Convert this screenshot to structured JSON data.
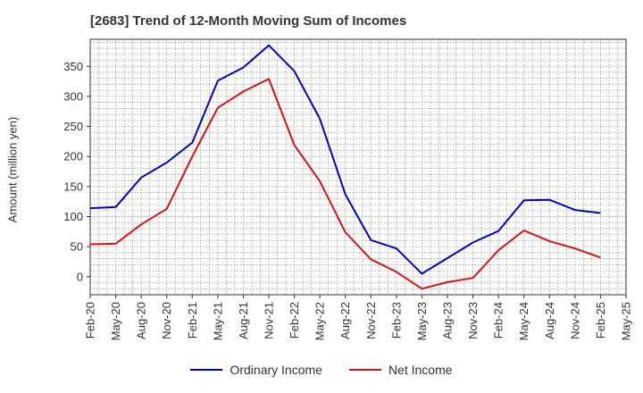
{
  "chart_data": {
    "type": "line",
    "title": "[2683]  Trend of 12-Month Moving Sum of Incomes",
    "ylabel": "Amount (million yen)",
    "xlabel": "",
    "ylim": [
      -30,
      395
    ],
    "yticks": [
      0,
      50,
      100,
      150,
      200,
      250,
      300,
      350
    ],
    "grid": true,
    "legend_position": "bottom",
    "categories": [
      "Feb-20",
      "May-20",
      "Aug-20",
      "Nov-20",
      "Feb-21",
      "May-21",
      "Aug-21",
      "Nov-21",
      "Feb-22",
      "May-22",
      "Aug-22",
      "Nov-22",
      "Feb-23",
      "May-23",
      "Aug-23",
      "Nov-23",
      "Feb-24",
      "May-24",
      "Aug-24",
      "Nov-24",
      "Feb-25",
      "May-25"
    ],
    "series": [
      {
        "name": "Ordinary Income",
        "color": "#0000cc",
        "values": [
          114,
          116,
          165,
          190,
          223,
          326,
          348,
          385,
          342,
          263,
          137,
          61,
          47,
          5,
          31,
          57,
          76,
          127,
          128,
          111,
          106,
          null
        ]
      },
      {
        "name": "Net Income",
        "color": "#dd1111",
        "values": [
          54,
          55,
          87,
          113,
          200,
          281,
          308,
          329,
          219,
          159,
          74,
          29,
          8,
          -20,
          -9,
          -2,
          44,
          77,
          59,
          47,
          32,
          null
        ]
      }
    ]
  }
}
